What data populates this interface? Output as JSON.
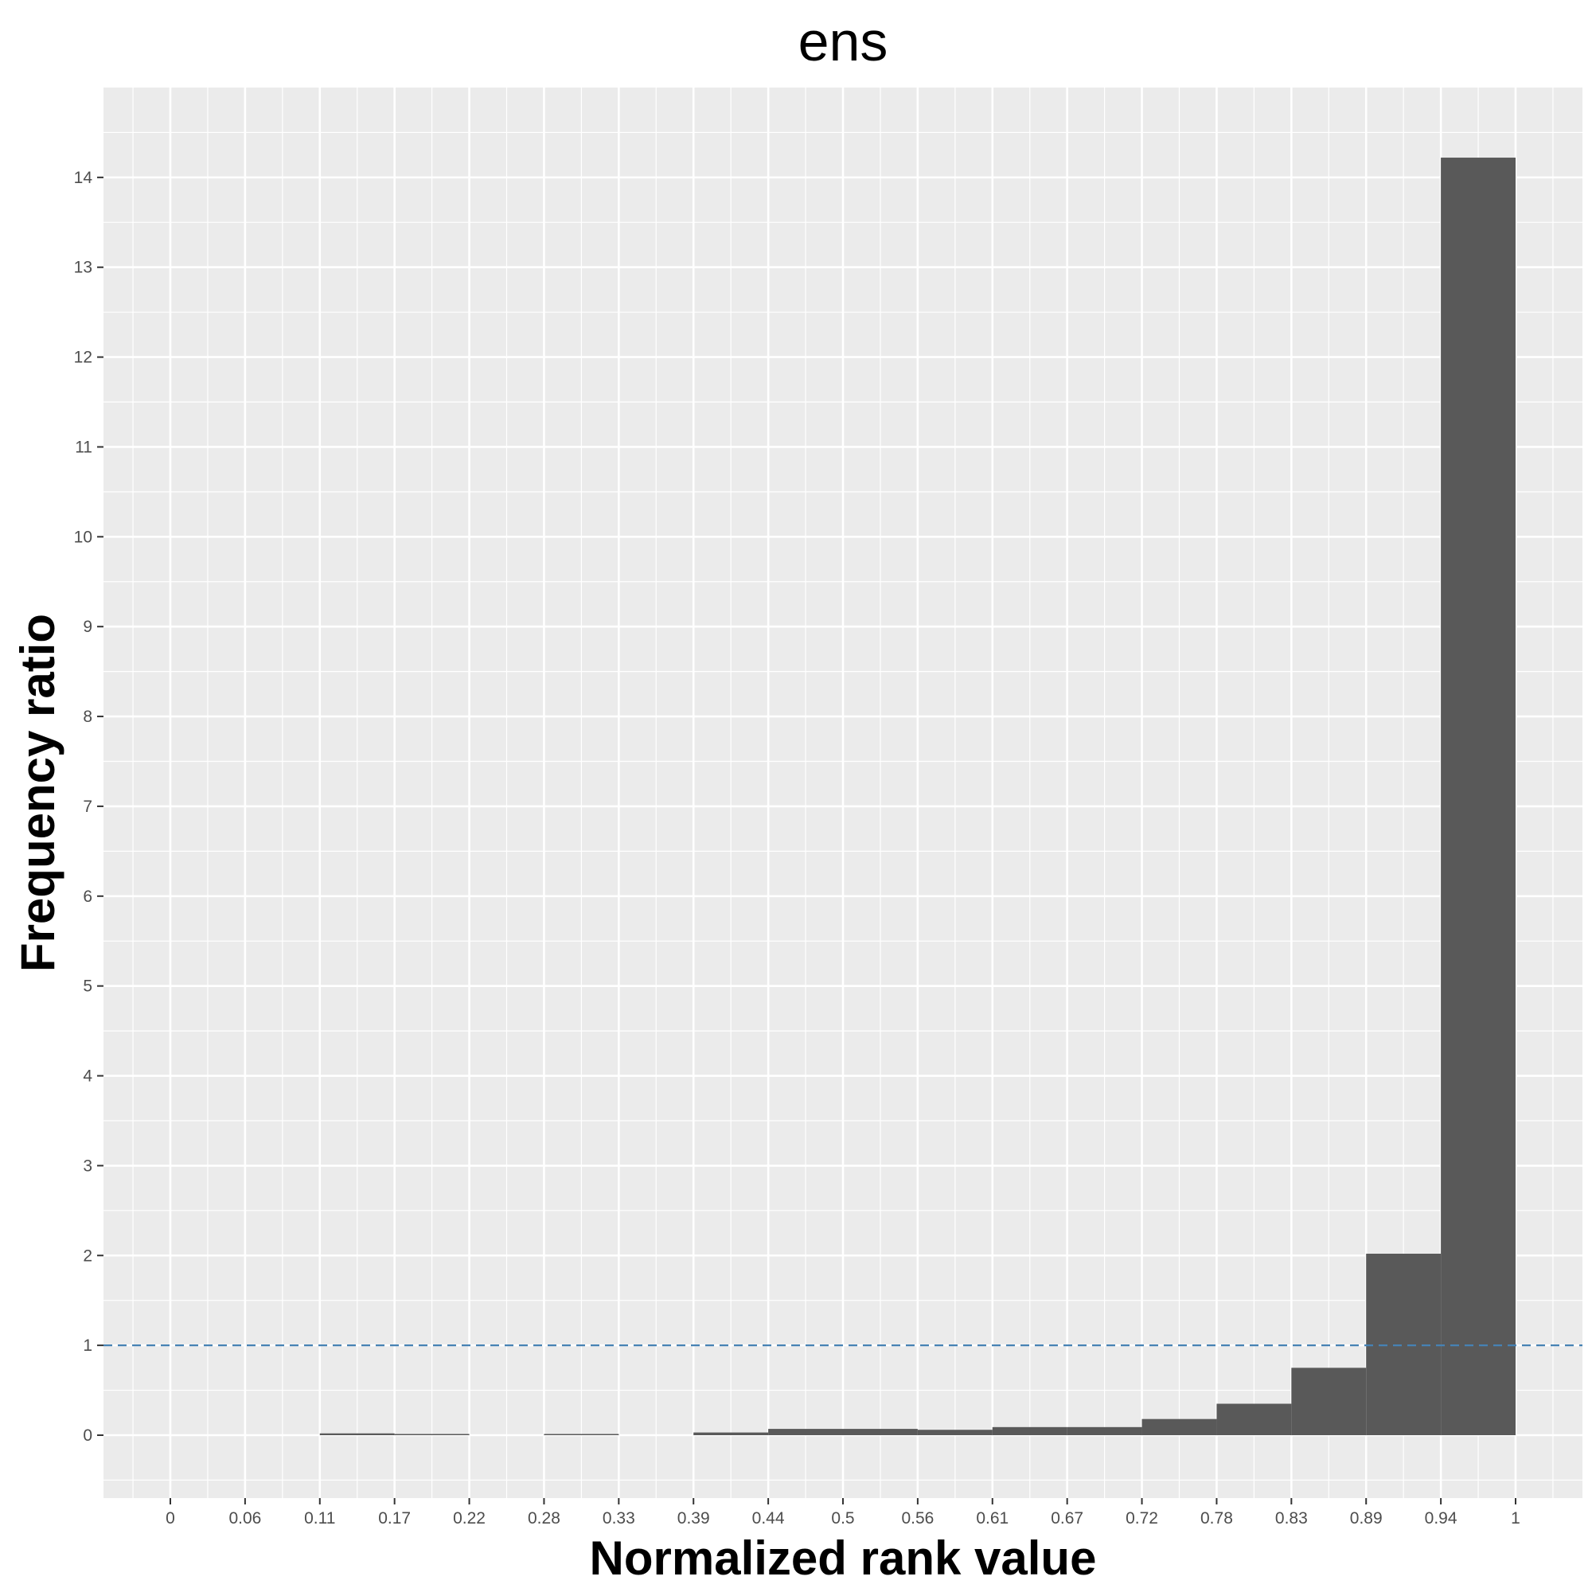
{
  "chart_data": {
    "type": "bar",
    "title": "ens",
    "xlabel": "Normalized rank value",
    "ylabel": "Frequency ratio",
    "x_ticks": [
      "0",
      "0.06",
      "0.11",
      "0.17",
      "0.22",
      "0.28",
      "0.33",
      "0.39",
      "0.44",
      "0.5",
      "0.56",
      "0.61",
      "0.67",
      "0.72",
      "0.78",
      "0.83",
      "0.89",
      "0.94",
      "1"
    ],
    "y_ticks": [
      0,
      1,
      2,
      3,
      4,
      5,
      6,
      7,
      8,
      9,
      10,
      11,
      12,
      13,
      14
    ],
    "ylim": [
      -0.7,
      15.0
    ],
    "bins": [
      {
        "from": "0",
        "to": "0.06",
        "value": 0
      },
      {
        "from": "0.06",
        "to": "0.11",
        "value": 0
      },
      {
        "from": "0.11",
        "to": "0.17",
        "value": 0.02
      },
      {
        "from": "0.17",
        "to": "0.22",
        "value": 0.01
      },
      {
        "from": "0.22",
        "to": "0.28",
        "value": 0
      },
      {
        "from": "0.28",
        "to": "0.33",
        "value": 0.01
      },
      {
        "from": "0.33",
        "to": "0.39",
        "value": 0
      },
      {
        "from": "0.39",
        "to": "0.44",
        "value": 0.03
      },
      {
        "from": "0.44",
        "to": "0.5",
        "value": 0.07
      },
      {
        "from": "0.5",
        "to": "0.56",
        "value": 0.07
      },
      {
        "from": "0.56",
        "to": "0.61",
        "value": 0.06
      },
      {
        "from": "0.61",
        "to": "0.67",
        "value": 0.09
      },
      {
        "from": "0.67",
        "to": "0.72",
        "value": 0.09
      },
      {
        "from": "0.72",
        "to": "0.78",
        "value": 0.18
      },
      {
        "from": "0.78",
        "to": "0.83",
        "value": 0.35
      },
      {
        "from": "0.83",
        "to": "0.89",
        "value": 0.75
      },
      {
        "from": "0.89",
        "to": "0.94",
        "value": 2.02
      },
      {
        "from": "0.94",
        "to": "1",
        "value": 14.22
      }
    ],
    "reference_line": {
      "y": 1,
      "style": "dashed"
    },
    "grid": true,
    "colors": {
      "panel": "#ebebeb",
      "grid": "#ffffff",
      "bar": "#595959",
      "reference_line": "#4682b4"
    }
  }
}
